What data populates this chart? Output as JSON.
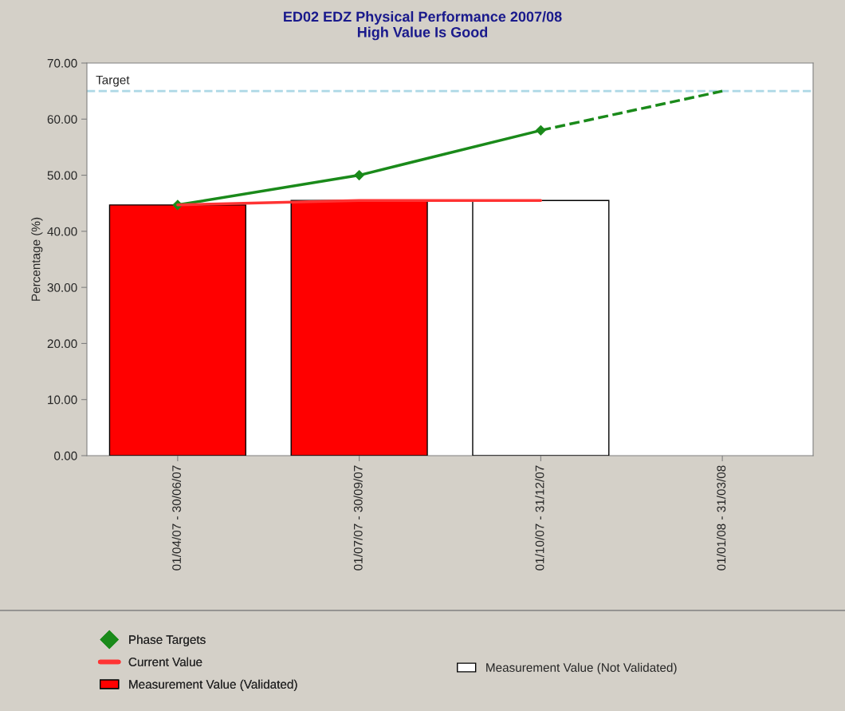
{
  "chart_data": {
    "type": "bar",
    "title": "ED02 EDZ Physical Performance 2007/08\nHigh Value Is Good",
    "ylabel": "Percentage (%)",
    "categories": [
      "01/04/07 - 30/06/07",
      "01/07/07 - 30/09/07",
      "01/10/07 - 31/12/07",
      "01/01/08 - 31/03/08"
    ],
    "series": [
      {
        "name": "Phase Targets",
        "type": "line",
        "color": "#1a8a1a",
        "marker": "diamond",
        "line_style": "solid",
        "values": [
          44.7,
          50,
          58,
          null
        ]
      },
      {
        "type": "line",
        "color": "#1a8a1a",
        "line_style": "dashed",
        "values": [
          null,
          null,
          58,
          65
        ]
      },
      {
        "name": "Current Value",
        "type": "line",
        "color": "#ff3333",
        "marker": "none",
        "line_style": "solid",
        "values": [
          44.7,
          45.5,
          45.5,
          null
        ]
      },
      {
        "name": "Measurement Value (Validated)",
        "color": "#ff0000",
        "values": [
          44.7,
          45.5,
          null,
          null
        ]
      },
      {
        "name": "Measurement Value (Not Validated)",
        "color": "#ffffff",
        "values": [
          null,
          null,
          45.5,
          null
        ]
      }
    ],
    "ylim": [
      0,
      70
    ],
    "yticks": [
      {
        "value": 0,
        "label": "0.00"
      },
      {
        "value": 10,
        "label": "10.00"
      },
      {
        "value": 20,
        "label": "20.00"
      },
      {
        "value": 30,
        "label": "30.00"
      },
      {
        "value": 40,
        "label": "40.00"
      },
      {
        "value": 50,
        "label": "50.00"
      },
      {
        "value": 60,
        "label": "60.00"
      },
      {
        "value": 70,
        "label": "70.00"
      }
    ],
    "ref_lines": [
      {
        "axis": "y",
        "value": 65,
        "label": "Target",
        "color": "#add8e6",
        "line_style": "dashed"
      }
    ],
    "grid": false,
    "legend": "bottom"
  }
}
